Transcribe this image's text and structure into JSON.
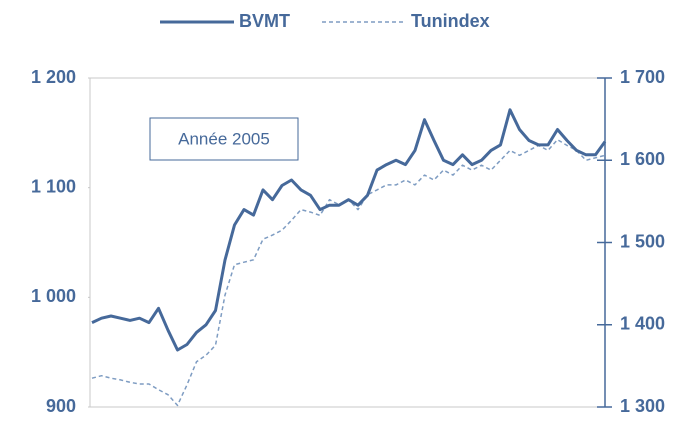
{
  "chart_data": {
    "type": "line",
    "annotation": "Année 2005",
    "legend": "top",
    "series": [
      {
        "name": "BVMT",
        "color": "#46699a",
        "dash": false,
        "axis": "y",
        "values": [
          977,
          981,
          983,
          981,
          979,
          981,
          977,
          990,
          970,
          952,
          957,
          968,
          975,
          988,
          1034,
          1066,
          1080,
          1075,
          1098,
          1089,
          1102,
          1107,
          1098,
          1093,
          1080,
          1084,
          1084,
          1089,
          1084,
          1093,
          1116,
          1121,
          1125,
          1121,
          1134,
          1162,
          1143,
          1125,
          1121,
          1130,
          1121,
          1125,
          1134,
          1139,
          1171,
          1153,
          1143,
          1139,
          1139,
          1153,
          1143,
          1134,
          1130,
          1130,
          1142
        ]
      },
      {
        "name": "Tunindex",
        "color": "#7e9cc2",
        "dash": true,
        "axis": "y2",
        "values": [
          1335,
          1338,
          1335,
          1333,
          1330,
          1328,
          1328,
          1321,
          1315,
          1302,
          1327,
          1355,
          1363,
          1375,
          1436,
          1473,
          1476,
          1479,
          1504,
          1509,
          1515,
          1527,
          1540,
          1537,
          1533,
          1552,
          1546,
          1552,
          1540,
          1558,
          1564,
          1570,
          1570,
          1576,
          1570,
          1582,
          1576,
          1588,
          1582,
          1594,
          1588,
          1594,
          1588,
          1600,
          1612,
          1606,
          1612,
          1618,
          1612,
          1625,
          1618,
          1612,
          1600,
          1603,
          1606
        ]
      }
    ],
    "ylim": [
      900,
      1200
    ],
    "yticks": [
      900,
      {
        "value": 1000,
        "label": "1 000"
      },
      {
        "value": 1100,
        "label": "1 100"
      },
      {
        "value": 1200,
        "label": "1 200"
      }
    ],
    "y2lim": [
      1300,
      1700
    ],
    "y2ticks": [
      {
        "value": 1300,
        "label": "1 300"
      },
      {
        "value": 1400,
        "label": "1 400"
      },
      {
        "value": 1500,
        "label": "1 500"
      },
      {
        "value": 1600,
        "label": "1 600"
      },
      {
        "value": 1700,
        "label": "1 700"
      }
    ]
  }
}
